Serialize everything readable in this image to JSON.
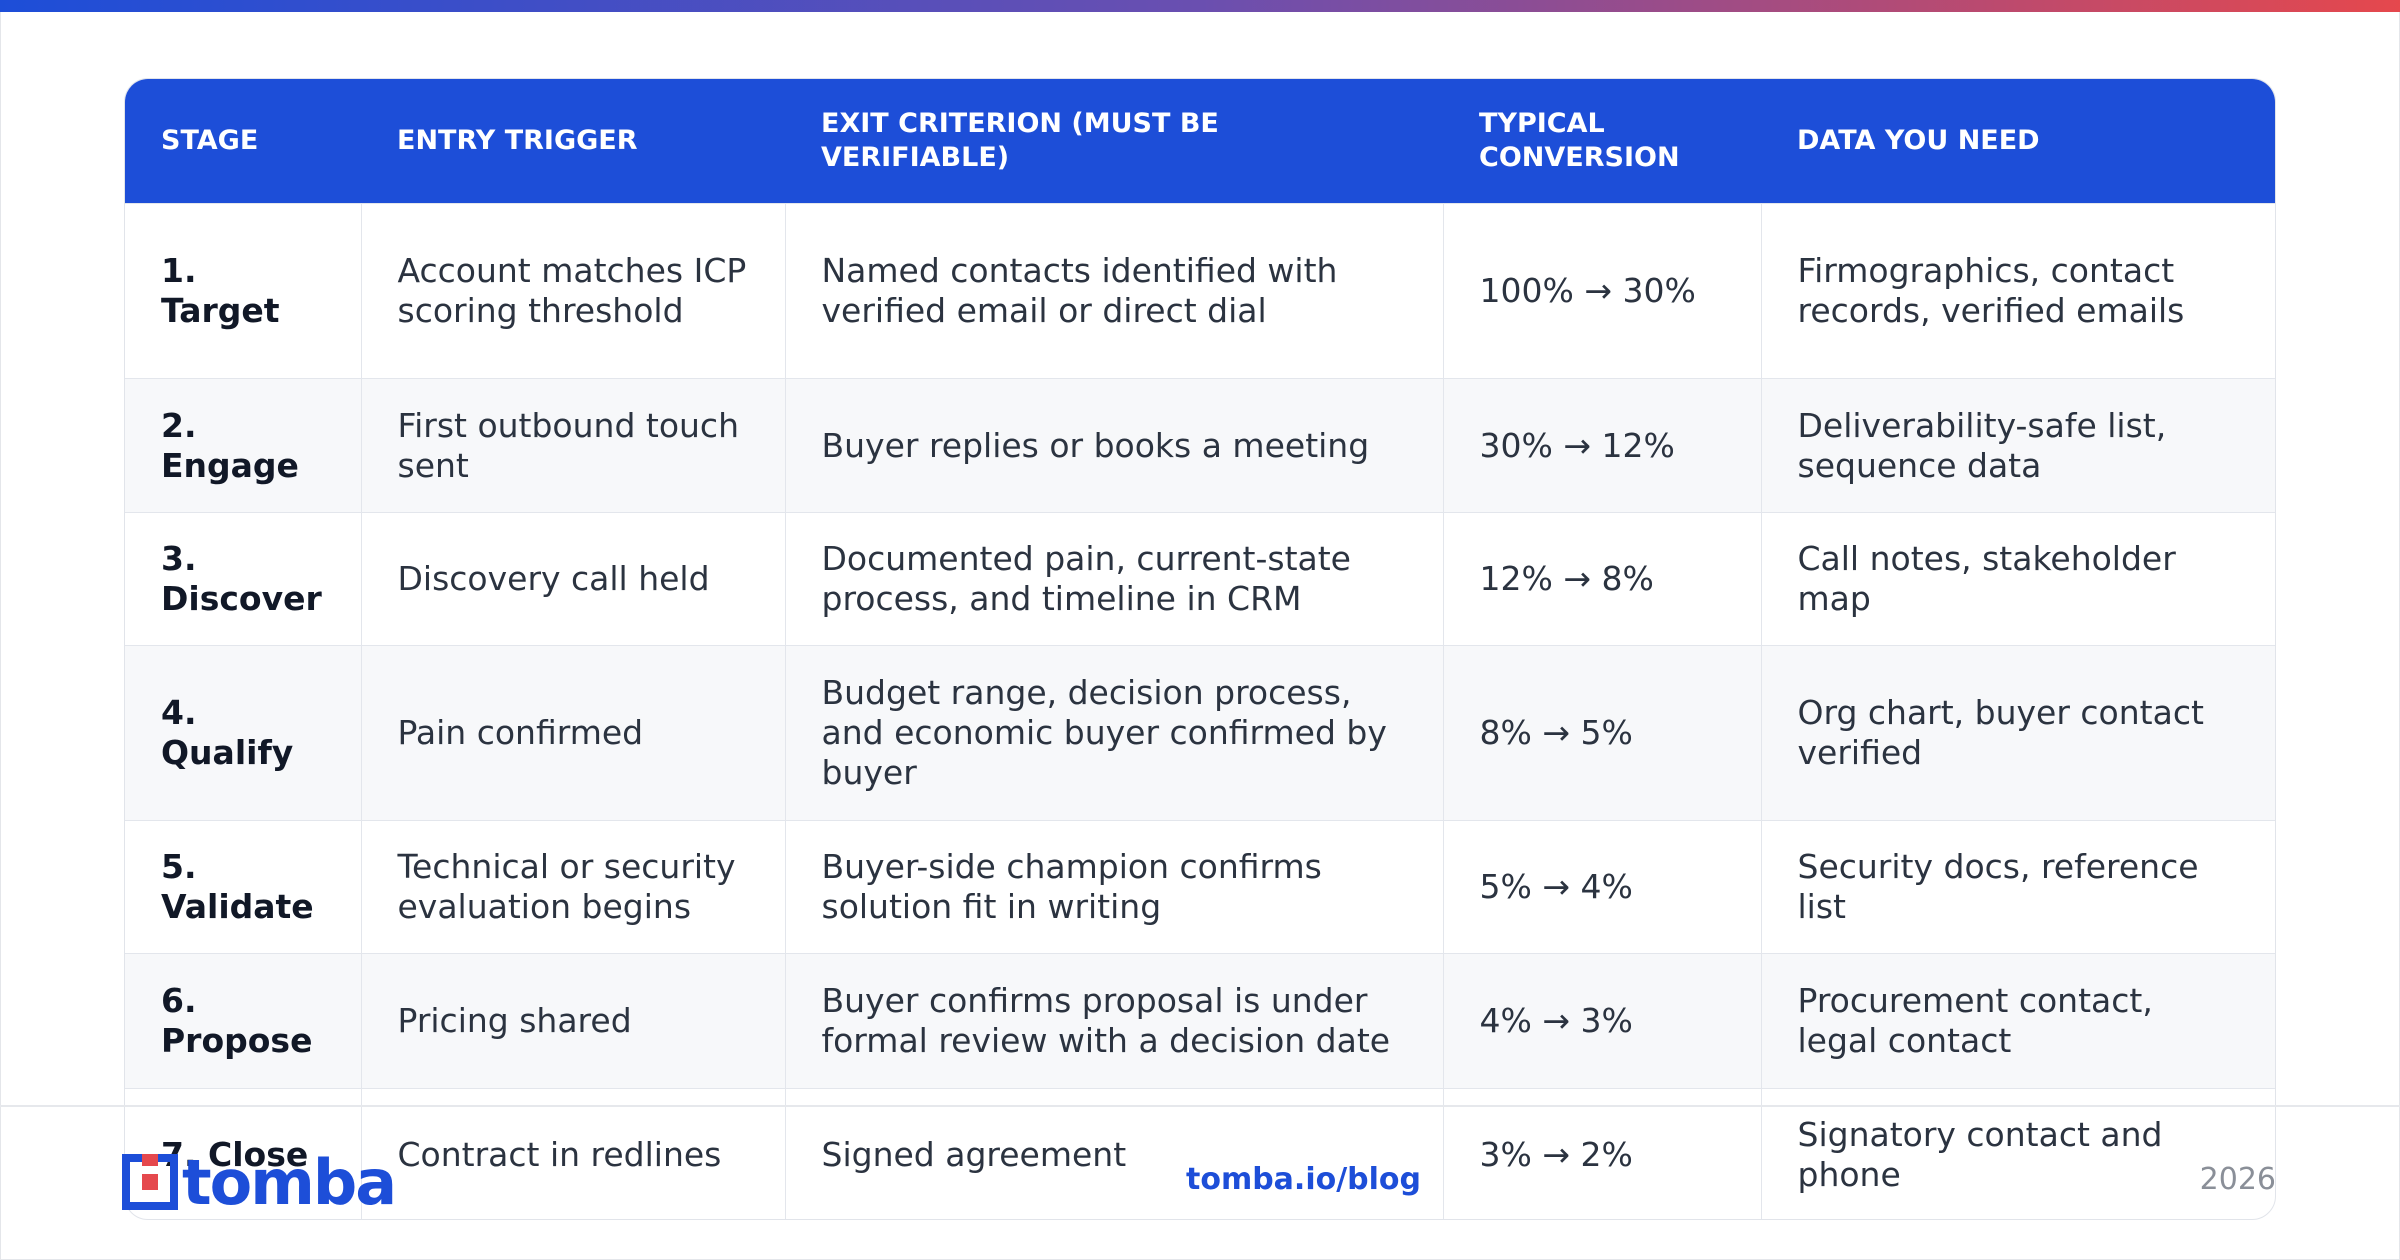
{
  "table": {
    "header": [
      "STAGE",
      "ENTRY TRIGGER",
      "EXIT CRITERION (MUST BE VERIFIABLE)",
      "TYPICAL CONVERSION",
      "DATA YOU NEED"
    ],
    "rows": [
      [
        "1. Target",
        "Account matches ICP scoring threshold",
        "Named contacts identified with verified email or direct dial",
        "100% → 30%",
        "Firmographics, contact records, verified emails"
      ],
      [
        "2. Engage",
        "First outbound touch sent",
        "Buyer replies or books a meeting",
        "30% → 12%",
        "Deliverability-safe list, sequence data"
      ],
      [
        "3. Discover",
        "Discovery call held",
        "Documented pain, current-state process, and timeline in CRM",
        "12% → 8%",
        "Call notes, stakeholder map"
      ],
      [
        "4. Qualify",
        "Pain confirmed",
        "Budget range, decision process, and economic buyer confirmed by buyer",
        "8% → 5%",
        "Org chart, buyer contact verified"
      ],
      [
        "5. Validate",
        "Technical or security evaluation begins",
        "Buyer-side champion confirms solution fit in writing",
        "5% → 4%",
        "Security docs, reference list"
      ],
      [
        "6. Propose",
        "Pricing shared",
        "Buyer confirms proposal is under formal review with a decision date",
        "4% → 3%",
        "Procurement contact, legal contact"
      ],
      [
        "7. Close",
        "Contract in redlines",
        "Signed agreement",
        "3% → 2%",
        "Signatory contact and phone"
      ]
    ]
  },
  "footer": {
    "logo": "tomba",
    "link": "tomba.io/blog",
    "year": "2026"
  }
}
